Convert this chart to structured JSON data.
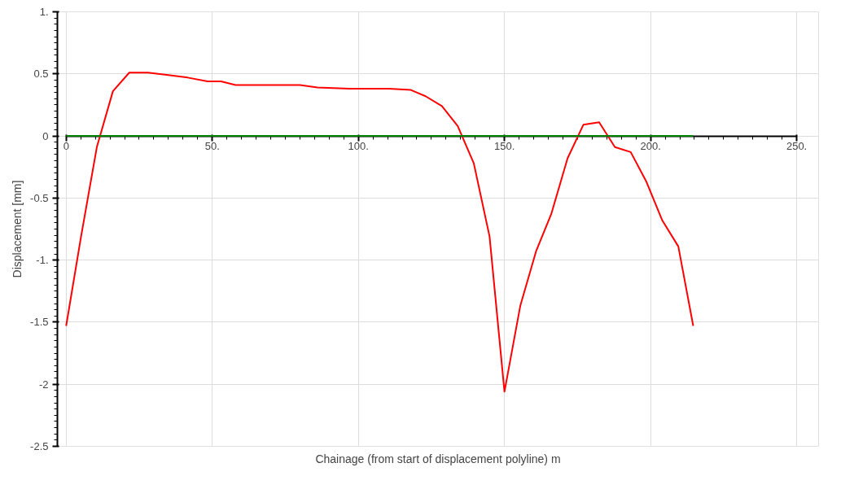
{
  "chart_data": {
    "type": "line",
    "xlabel": "Chainage (from start of displacement polyline) m",
    "ylabel": "Displacement [mm]",
    "xlim": [
      0,
      250
    ],
    "ylim": [
      -2.5,
      1
    ],
    "xticks": [
      0,
      {
        "value": 50,
        "label": "50."
      },
      {
        "value": 100,
        "label": "100."
      },
      {
        "value": 150,
        "label": "150."
      },
      {
        "value": 200,
        "label": "200."
      },
      {
        "value": 250,
        "label": "250."
      }
    ],
    "yticks": [
      {
        "value": 1,
        "label": "1."
      },
      0.5,
      0,
      -0.5,
      {
        "value": -1,
        "label": "-1."
      },
      -1.5,
      -2,
      -2.5
    ],
    "grid": true,
    "marker": "none",
    "line_style": "solid",
    "series": [
      {
        "color": "#ff0000",
        "x": [
          0,
          5.1,
          10.5,
          16,
          21.6,
          28,
          35,
          41.6,
          48.4,
          53,
          58,
          80,
          86,
          97,
          110.5,
          118,
          123,
          128.6,
          134,
          139.5,
          144.9,
          150,
          155.4,
          160.8,
          166,
          171.6,
          177,
          182.4,
          187.8,
          193.2,
          198.6,
          204,
          209.5,
          214.6
        ],
        "values": [
          -1.53,
          -0.81,
          -0.09,
          0.36,
          0.51,
          0.51,
          0.49,
          0.47,
          0.44,
          0.44,
          0.41,
          0.41,
          0.39,
          0.38,
          0.38,
          0.37,
          0.32,
          0.24,
          0.08,
          -0.22,
          -0.81,
          -2.06,
          -1.37,
          -0.93,
          -0.63,
          -0.18,
          0.09,
          0.11,
          -0.09,
          -0.13,
          -0.37,
          -0.68,
          -0.89,
          -1.53
        ]
      },
      {
        "color": "#008000",
        "x": [
          0,
          214.6
        ],
        "values": [
          0,
          0
        ]
      }
    ]
  }
}
